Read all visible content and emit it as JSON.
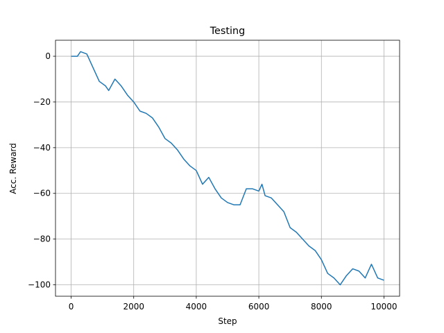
{
  "chart_data": {
    "type": "line",
    "title": "Testing",
    "xlabel": "Step",
    "ylabel": "Acc. Reward",
    "x": [
      0,
      200,
      300,
      500,
      700,
      900,
      1100,
      1200,
      1400,
      1600,
      1800,
      2000,
      2200,
      2400,
      2600,
      2800,
      3000,
      3200,
      3400,
      3600,
      3800,
      4000,
      4200,
      4400,
      4600,
      4800,
      5000,
      5200,
      5400,
      5600,
      5800,
      6000,
      6100,
      6200,
      6400,
      6600,
      6800,
      7000,
      7200,
      7400,
      7600,
      7800,
      8000,
      8200,
      8400,
      8600,
      8800,
      9000,
      9200,
      9400,
      9600,
      9800,
      10000
    ],
    "values": [
      0,
      0,
      2,
      1,
      -5,
      -11,
      -13,
      -15,
      -10,
      -13,
      -17,
      -20,
      -24,
      -25,
      -27,
      -31,
      -36,
      -38,
      -41,
      -45,
      -48,
      -50,
      -56,
      -53,
      -58,
      -62,
      -64,
      -65,
      -65,
      -58,
      -58,
      -59,
      -56,
      -61,
      -62,
      -65,
      -68,
      -75,
      -77,
      -80,
      -83,
      -85,
      -89,
      -95,
      -97,
      -100,
      -96,
      -93,
      -94,
      -97,
      -91,
      -97,
      -98
    ],
    "color": "#1f77b4",
    "xlim": [
      -500,
      10500
    ],
    "ylim": [
      -105,
      7
    ],
    "xticks": [
      0,
      2000,
      4000,
      6000,
      8000,
      10000
    ],
    "yticks": [
      0,
      {
        "value": -20,
        "label": "−20"
      },
      {
        "value": -40,
        "label": "−40"
      },
      {
        "value": -60,
        "label": "−60"
      },
      {
        "value": -80,
        "label": "−80"
      },
      {
        "value": -100,
        "label": "−100"
      }
    ],
    "grid": true
  }
}
